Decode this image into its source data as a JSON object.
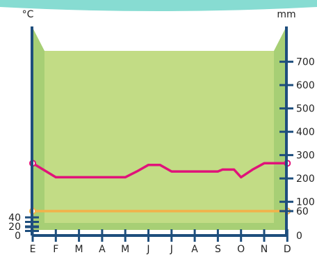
{
  "chart_data": {
    "type": "line",
    "left_unit": "°C",
    "right_unit": "mm",
    "categories": [
      "E",
      "F",
      "M",
      "A",
      "M",
      "J",
      "J",
      "A",
      "S",
      "O",
      "N",
      "D"
    ],
    "left_axis": {
      "ticks": [
        0,
        20,
        40
      ]
    },
    "right_axis": {
      "ticks": [
        0,
        60,
        100,
        200,
        300,
        400,
        500,
        600,
        700
      ]
    },
    "series": [
      {
        "axis": "right",
        "color": "#e0137a",
        "x": [
          0,
          1,
          2,
          3,
          4,
          4.5,
          5,
          5.5,
          6,
          7,
          8,
          8.2,
          8.7,
          9,
          9.5,
          10,
          11
        ],
        "values": [
          265,
          205,
          205,
          205,
          205,
          230,
          258,
          258,
          230,
          230,
          230,
          238,
          238,
          205,
          238,
          265,
          265
        ]
      },
      {
        "axis": "right",
        "color": "#f2b24a",
        "x": [
          0,
          11
        ],
        "values": [
          60,
          60
        ]
      }
    ],
    "colors": {
      "axis": "#1e4e7d",
      "fill": "#c2dc85",
      "fill_edge": "#a7cf75",
      "band": "#87dcd2"
    }
  }
}
